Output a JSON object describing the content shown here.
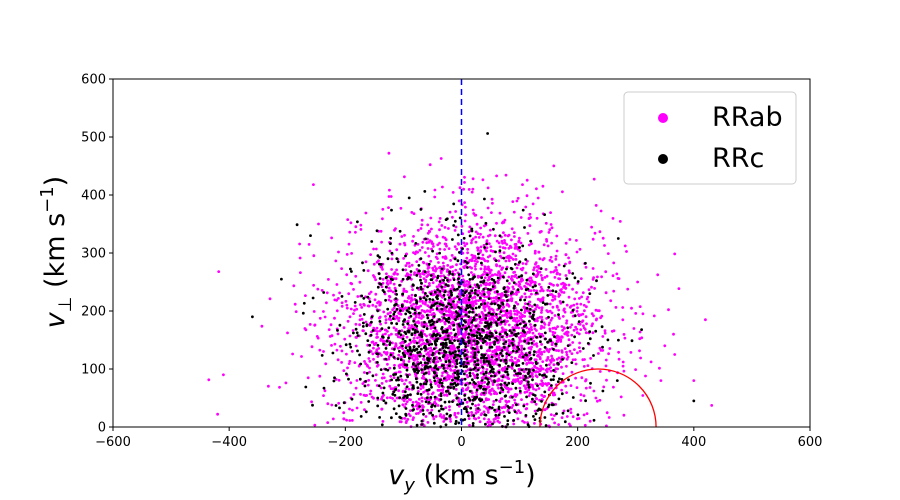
{
  "chart_data": {
    "type": "scatter",
    "xlabel": "v_y (km s^-1)",
    "ylabel": "v_⊥ (km s^-1)",
    "xlim": [
      -600,
      600
    ],
    "ylim": [
      0,
      600
    ],
    "xticks": [
      -600,
      -400,
      -200,
      0,
      200,
      400,
      600
    ],
    "yticks": [
      0,
      100,
      200,
      300,
      400,
      500,
      600
    ],
    "xtick_labels": [
      "−600",
      "−400",
      "−200",
      "0",
      "200",
      "400",
      "600"
    ],
    "ytick_labels": [
      "0",
      "100",
      "200",
      "300",
      "400",
      "500",
      "600"
    ],
    "grid": false,
    "legend_position": "top-right",
    "reference_line": {
      "orientation": "vertical",
      "x": 0,
      "color": "#0000ff",
      "style": "dashed"
    },
    "reference_circle": {
      "center_x": 235,
      "center_y": 0,
      "radius": 100,
      "color": "#ff0000"
    },
    "series": [
      {
        "name": "RRab",
        "color": "#ff00ff",
        "distribution": {
          "count": 3400,
          "mean_x": 20,
          "sd_x": 110,
          "mean_y": 165,
          "sd_y": 95
        },
        "points": [
          {
            "x": -420,
            "y": 22
          },
          {
            "x": -410,
            "y": 90
          },
          {
            "x": -418,
            "y": 268
          },
          {
            "x": -255,
            "y": 418
          },
          {
            "x": -125,
            "y": 472
          },
          {
            "x": -35,
            "y": 463
          },
          {
            "x": 20,
            "y": 428
          },
          {
            "x": 105,
            "y": 418
          },
          {
            "x": 420,
            "y": 185
          },
          {
            "x": 400,
            "y": 80
          },
          {
            "x": 365,
            "y": 160
          },
          {
            "x": 350,
            "y": 140
          }
        ]
      },
      {
        "name": "RRc",
        "color": "#000000",
        "distribution": {
          "count": 1200,
          "mean_x": 0,
          "sd_x": 95,
          "mean_y": 140,
          "sd_y": 85
        },
        "points": [
          {
            "x": 45,
            "y": 506
          },
          {
            "x": 400,
            "y": 45
          },
          {
            "x": 310,
            "y": 168
          },
          {
            "x": -360,
            "y": 190
          },
          {
            "x": -310,
            "y": 255
          },
          {
            "x": -260,
            "y": 330
          },
          {
            "x": 270,
            "y": 325
          },
          {
            "x": -90,
            "y": 395
          }
        ]
      }
    ]
  }
}
